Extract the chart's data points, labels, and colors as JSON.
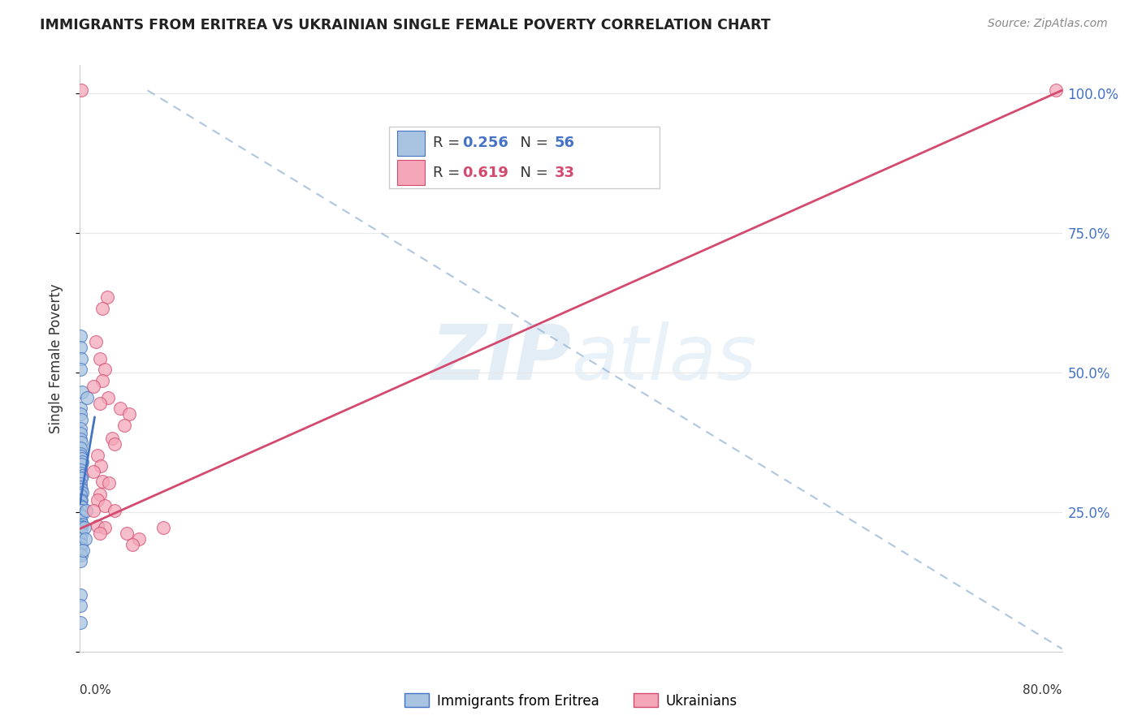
{
  "title": "IMMIGRANTS FROM ERITREA VS UKRAINIAN SINGLE FEMALE POVERTY CORRELATION CHART",
  "source": "Source: ZipAtlas.com",
  "ylabel": "Single Female Poverty",
  "ytick_values": [
    0.0,
    0.25,
    0.5,
    0.75,
    1.0
  ],
  "ytick_labels_right": [
    "",
    "25.0%",
    "50.0%",
    "75.0%",
    "100.0%"
  ],
  "legend_label_eritrea": "Immigrants from Eritrea",
  "legend_label_ukraine": "Ukrainians",
  "R_eritrea": 0.256,
  "N_eritrea": 56,
  "R_ukraine": 0.619,
  "N_ukraine": 33,
  "color_eritrea_fill": "#a8c4e0",
  "color_eritrea_edge": "#4472c4",
  "color_ukraine_fill": "#f4a7b9",
  "color_ukraine_edge": "#d44a6e",
  "color_line_eritrea": "#4472c4",
  "color_line_ukraine": "#d44a6e",
  "color_diagonal": "#9ab8d8",
  "color_text_blue": "#4472c4",
  "color_text_pink": "#d44a6e",
  "watermark_zip": "ZIP",
  "watermark_atlas": "atlas",
  "xlim": [
    0.0,
    0.8
  ],
  "ylim": [
    0.0,
    1.05
  ],
  "background_color": "#ffffff",
  "grid_color": "#e8e8e8",
  "blue_dots": [
    [
      0.0005,
      0.565
    ],
    [
      0.0005,
      0.545
    ],
    [
      0.0008,
      0.525
    ],
    [
      0.0005,
      0.505
    ],
    [
      0.0015,
      0.465
    ],
    [
      0.0005,
      0.435
    ],
    [
      0.0005,
      0.425
    ],
    [
      0.001,
      0.415
    ],
    [
      0.0005,
      0.4
    ],
    [
      0.0005,
      0.39
    ],
    [
      0.0005,
      0.38
    ],
    [
      0.001,
      0.375
    ],
    [
      0.0005,
      0.365
    ],
    [
      0.0005,
      0.355
    ],
    [
      0.0005,
      0.35
    ],
    [
      0.001,
      0.345
    ],
    [
      0.0015,
      0.34
    ],
    [
      0.001,
      0.335
    ],
    [
      0.0005,
      0.325
    ],
    [
      0.0005,
      0.32
    ],
    [
      0.002,
      0.315
    ],
    [
      0.0005,
      0.31
    ],
    [
      0.001,
      0.31
    ],
    [
      0.0005,
      0.3
    ],
    [
      0.0005,
      0.295
    ],
    [
      0.001,
      0.29
    ],
    [
      0.0015,
      0.285
    ],
    [
      0.0005,
      0.28
    ],
    [
      0.001,
      0.272
    ],
    [
      0.0005,
      0.27
    ],
    [
      0.0005,
      0.262
    ],
    [
      0.0015,
      0.258
    ],
    [
      0.001,
      0.252
    ],
    [
      0.0005,
      0.245
    ],
    [
      0.001,
      0.242
    ],
    [
      0.0005,
      0.235
    ],
    [
      0.0015,
      0.228
    ],
    [
      0.0005,
      0.225
    ],
    [
      0.001,
      0.222
    ],
    [
      0.0005,
      0.215
    ],
    [
      0.001,
      0.21
    ],
    [
      0.0005,
      0.202
    ],
    [
      0.0005,
      0.195
    ],
    [
      0.001,
      0.192
    ],
    [
      0.0005,
      0.185
    ],
    [
      0.0005,
      0.175
    ],
    [
      0.001,
      0.172
    ],
    [
      0.0005,
      0.162
    ],
    [
      0.006,
      0.455
    ],
    [
      0.0005,
      0.102
    ],
    [
      0.0005,
      0.082
    ],
    [
      0.0005,
      0.052
    ],
    [
      0.005,
      0.252
    ],
    [
      0.0035,
      0.222
    ],
    [
      0.0045,
      0.202
    ],
    [
      0.0025,
      0.182
    ]
  ],
  "pink_dots": [
    [
      0.001,
      1.005
    ],
    [
      0.795,
      1.005
    ],
    [
      0.022,
      0.635
    ],
    [
      0.018,
      0.615
    ],
    [
      0.013,
      0.555
    ],
    [
      0.016,
      0.525
    ],
    [
      0.02,
      0.505
    ],
    [
      0.018,
      0.485
    ],
    [
      0.011,
      0.475
    ],
    [
      0.023,
      0.455
    ],
    [
      0.016,
      0.445
    ],
    [
      0.033,
      0.435
    ],
    [
      0.04,
      0.425
    ],
    [
      0.036,
      0.405
    ],
    [
      0.026,
      0.382
    ],
    [
      0.0285,
      0.372
    ],
    [
      0.014,
      0.352
    ],
    [
      0.017,
      0.332
    ],
    [
      0.011,
      0.322
    ],
    [
      0.0185,
      0.305
    ],
    [
      0.0235,
      0.302
    ],
    [
      0.0165,
      0.282
    ],
    [
      0.014,
      0.272
    ],
    [
      0.0205,
      0.262
    ],
    [
      0.011,
      0.252
    ],
    [
      0.0285,
      0.252
    ],
    [
      0.014,
      0.225
    ],
    [
      0.0205,
      0.222
    ],
    [
      0.0165,
      0.212
    ],
    [
      0.038,
      0.212
    ],
    [
      0.048,
      0.202
    ],
    [
      0.068,
      0.222
    ],
    [
      0.043,
      0.192
    ]
  ],
  "blue_line_x": [
    0.0,
    0.012
  ],
  "blue_line_y": [
    0.265,
    0.42
  ],
  "pink_line_x": [
    0.0,
    0.8
  ],
  "pink_line_y": [
    0.22,
    1.005
  ],
  "diag_line_x": [
    0.055,
    0.8
  ],
  "diag_line_y": [
    1.005,
    0.005
  ]
}
